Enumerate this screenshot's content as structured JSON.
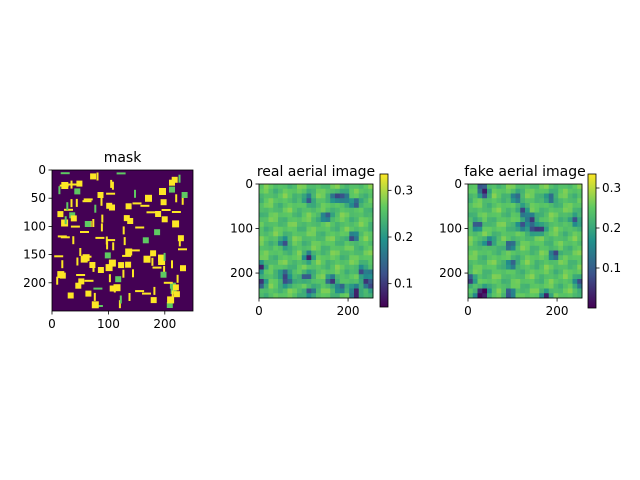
{
  "chart_data": [
    {
      "type": "heatmap",
      "title": "mask",
      "xticks": [
        "0",
        "100",
        "200"
      ],
      "xtick_values": [
        0,
        100,
        200
      ],
      "yticks": [
        "0",
        "50",
        "100",
        "150",
        "200"
      ],
      "ytick_values": [
        0,
        50,
        100,
        150,
        200
      ],
      "xlim": [
        0,
        250
      ],
      "ylim": [
        250,
        0
      ],
      "colormap": "viridis",
      "value_range": [
        0,
        1
      ],
      "colorbar": false,
      "content": "binary layout mask: yellow rectangles and bars on dark purple background"
    },
    {
      "type": "heatmap",
      "title": "real aerial image",
      "xticks": [
        "0",
        "200"
      ],
      "xtick_values": [
        0,
        200
      ],
      "yticks": [
        "0",
        "100",
        "200"
      ],
      "ytick_values": [
        0,
        100,
        200
      ],
      "xlim": [
        0,
        256
      ],
      "ylim": [
        256,
        0
      ],
      "colormap": "viridis",
      "colorbar": true,
      "colorbar_ticks": [
        "0.1",
        "0.2",
        "0.3"
      ],
      "colorbar_tick_values": [
        0.1,
        0.2,
        0.3
      ],
      "colorbar_range": [
        0.05,
        0.335
      ],
      "content": "smooth intensity pattern, mostly green with dark blue spots"
    },
    {
      "type": "heatmap",
      "title": "fake aerial image",
      "xticks": [
        "0",
        "200"
      ],
      "xtick_values": [
        0,
        200
      ],
      "yticks": [
        "0",
        "100",
        "200"
      ],
      "ytick_values": [
        0,
        100,
        200
      ],
      "xlim": [
        0,
        256
      ],
      "ylim": [
        256,
        0
      ],
      "colormap": "viridis",
      "colorbar": true,
      "colorbar_ticks": [
        "0.1",
        "0.2",
        "0.3"
      ],
      "colorbar_tick_values": [
        0.1,
        0.2,
        0.3
      ],
      "colorbar_range": [
        0.0,
        0.335
      ],
      "content": "smooth intensity pattern, mostly green with dark blue spots"
    }
  ],
  "colors": {
    "viridis_low": "#440154",
    "viridis_mid": "#21918c",
    "viridis_high": "#fde725"
  }
}
